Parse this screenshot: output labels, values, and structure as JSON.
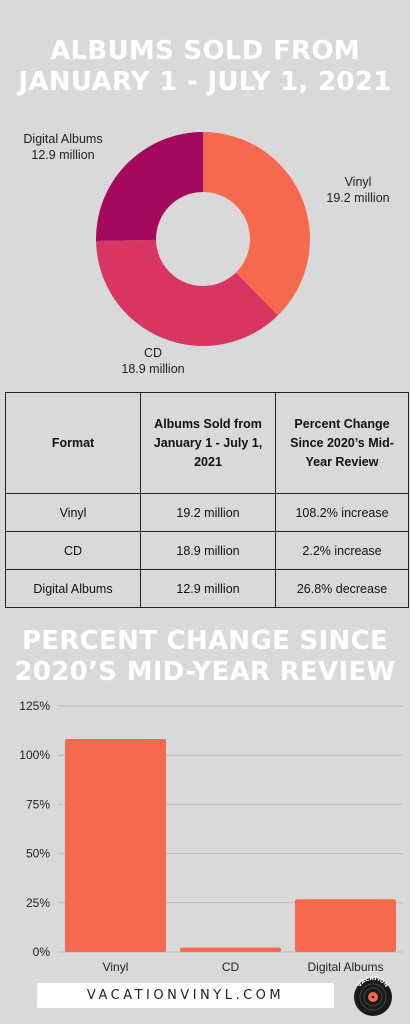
{
  "pie_title_line1": "ALBUMS SOLD FROM",
  "pie_title_line2": "JANUARY 1 - JULY 1, 2021",
  "bar_title_line1": "PERCENT CHANGE SINCE",
  "bar_title_line2": "2020’S MID-YEAR REVIEW",
  "colors": {
    "vinyl": "#f7694e",
    "cd": "#d93563",
    "digital": "#a5095e",
    "bar": "#f7694e",
    "background": "#d9d9d9"
  },
  "chart_data": [
    {
      "type": "pie",
      "title": "ALBUMS SOLD FROM JANUARY 1 - JULY 1, 2021",
      "slices": [
        {
          "name": "Vinyl",
          "value": 19.2,
          "value_label": "19.2 million"
        },
        {
          "name": "CD",
          "value": 18.9,
          "value_label": "18.9 million"
        },
        {
          "name": "Digital Albums",
          "value": 12.9,
          "value_label": "12.9 million"
        }
      ]
    },
    {
      "type": "table",
      "columns": [
        "Format",
        "Albums Sold from January 1 - July 1, 2021",
        "Percent Change Since 2020’s Mid-Year Review"
      ],
      "rows": [
        [
          "Vinyl",
          "19.2 million",
          "108.2% increase"
        ],
        [
          "CD",
          "18.9 million",
          "2.2% increase"
        ],
        [
          "Digital Albums",
          "12.9 million",
          "26.8% decrease"
        ]
      ]
    },
    {
      "type": "bar",
      "title": "PERCENT CHANGE SINCE 2020’S MID-YEAR REVIEW",
      "categories": [
        "Vinyl",
        "CD",
        "Digital Albums"
      ],
      "values": [
        108.2,
        2.2,
        26.8
      ],
      "ylim": [
        0,
        125
      ],
      "yticks": [
        "0%",
        "25%",
        "50%",
        "75%",
        "100%",
        "125%"
      ],
      "grid": true
    }
  ],
  "footer": {
    "site": "VACATIONVINYL.COM",
    "logo_text": "VACATION VINYL"
  }
}
